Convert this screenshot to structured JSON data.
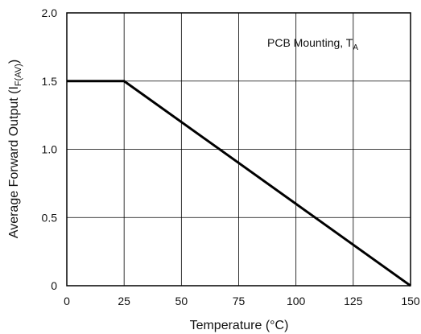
{
  "chart_data": {
    "type": "line",
    "xlabel": "Temperature (°C)",
    "ylabel_main": "Average Forward Output (I",
    "ylabel_sub": "F(AV)",
    "ylabel_close": ")",
    "annotation_main": "PCB Mounting, T",
    "annotation_sub": "A",
    "xlim": [
      0,
      150
    ],
    "ylim": [
      0,
      2.0
    ],
    "x_ticks": [
      0,
      25,
      50,
      75,
      100,
      125,
      150
    ],
    "x_tick_labels": [
      "0",
      "25",
      "50",
      "75",
      "100",
      "125",
      "150"
    ],
    "y_ticks": [
      0,
      0.5,
      1.0,
      1.5,
      2.0
    ],
    "y_tick_labels": [
      "0",
      "0.5",
      "1.0",
      "1.5",
      "2.0"
    ],
    "grid": true,
    "series": [
      {
        "x": [
          0,
          25,
          150
        ],
        "y": [
          1.5,
          1.5,
          0
        ]
      }
    ]
  }
}
